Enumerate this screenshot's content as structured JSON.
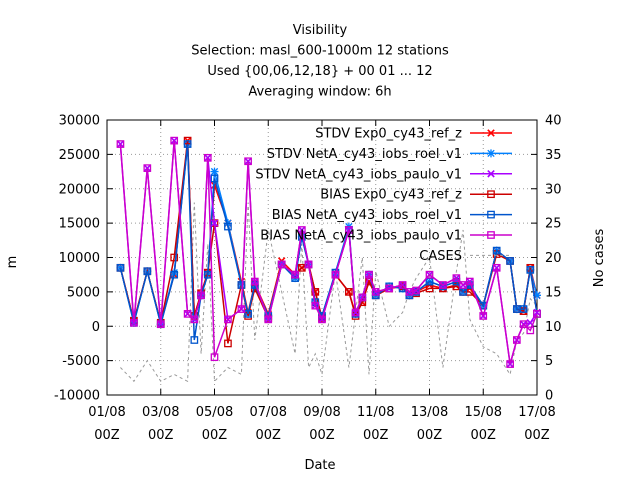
{
  "chart_data": {
    "type": "line",
    "title_lines": [
      "Visibility",
      "Selection: masl_600-1000m     12 stations",
      "Used {00,06,12,18} + 00 01 ... 12",
      "Averaging window:  6h"
    ],
    "xlabel": "Date",
    "ylabel": "m",
    "y2label": "No cases",
    "ylim": [
      -10000,
      30000
    ],
    "y2lim": [
      0,
      40
    ],
    "yticks": [
      "-10000",
      "-5000",
      "0",
      "5000",
      "10000",
      "15000",
      "20000",
      "25000",
      "30000"
    ],
    "y2ticks": [
      "0",
      "5",
      "10",
      "15",
      "20",
      "25",
      "30",
      "35",
      "40"
    ],
    "xlim": [
      "2016-08-01 00Z",
      "2016-08-17 00Z"
    ],
    "xticks": [
      {
        "date": "01/08",
        "hour": "00Z"
      },
      {
        "date": "03/08",
        "hour": "00Z"
      },
      {
        "date": "05/08",
        "hour": "00Z"
      },
      {
        "date": "07/08",
        "hour": "00Z"
      },
      {
        "date": "09/08",
        "hour": "00Z"
      },
      {
        "date": "11/08",
        "hour": "00Z"
      },
      {
        "date": "13/08",
        "hour": "00Z"
      },
      {
        "date": "15/08",
        "hour": "00Z"
      },
      {
        "date": "17/08",
        "hour": "00Z"
      }
    ],
    "grid": true,
    "legend_position": "top-right",
    "x_days": [
      0.5,
      1.0,
      1.5,
      2.0,
      2.5,
      3.0,
      3.25,
      3.5,
      3.75,
      4.0,
      4.5,
      5.0,
      5.25,
      5.5,
      6.0,
      6.5,
      7.0,
      7.25,
      7.5,
      7.75,
      8.0,
      8.5,
      9.0,
      9.25,
      9.5,
      9.75,
      10.0,
      10.5,
      11.0,
      11.25,
      11.5,
      12.0,
      12.5,
      13.0,
      13.25,
      13.5,
      14.0,
      14.5,
      15.0,
      15.25,
      15.5,
      15.75,
      16.0
    ],
    "series": [
      {
        "name": "STDV Exp0_cy43_ref_z",
        "axis": "y1",
        "color": "#ff0000",
        "marker": "x",
        "values": [
          8500,
          800,
          8000,
          500,
          7500,
          27000,
          1500,
          4800,
          7800,
          20500,
          15000,
          6500,
          2000,
          6200,
          1800,
          9500,
          7500,
          8500,
          9000,
          5000,
          1200,
          7500,
          5000,
          1800,
          3500,
          6500,
          4500,
          5500,
          5800,
          4500,
          5000,
          6000,
          5500,
          6000,
          5000,
          5500,
          3000,
          11000,
          9500,
          2500,
          2200,
          8500,
          4500
        ]
      },
      {
        "name": "STDV NetA_cy43_iobs_roel_v1",
        "axis": "y1",
        "color": "#0080ff",
        "marker": "asterisk",
        "values": [
          8500,
          500,
          8000,
          300,
          7800,
          26500,
          1500,
          4500,
          7500,
          22500,
          15000,
          6000,
          1800,
          6000,
          1500,
          9000,
          7000,
          13000,
          9000,
          3500,
          1500,
          7800,
          14500,
          1800,
          4200,
          7500,
          4500,
          5800,
          5500,
          4500,
          5000,
          6500,
          5800,
          6500,
          5000,
          6000,
          3000,
          11000,
          9500,
          2500,
          2500,
          8200,
          4500
        ]
      },
      {
        "name": "STDV NetA_cy43_iobs_paulo_v1",
        "axis": "y1",
        "color": "#aa00ff",
        "marker": "x",
        "values": [
          26500,
          500,
          23000,
          300,
          27000,
          1800,
          1000,
          4500,
          24500,
          15000,
          1000,
          2500,
          24000,
          6500,
          1000,
          9000,
          7500,
          14000,
          9000,
          3000,
          1000,
          7500,
          14000,
          2000,
          4200,
          7500,
          5000,
          5500,
          6000,
          5000,
          5200,
          7500,
          6000,
          7000,
          6000,
          6500,
          1500,
          8500,
          -5500,
          -2000,
          300,
          500,
          2000
        ]
      },
      {
        "name": "BIAS Exp0_cy43_ref_z",
        "axis": "y1",
        "color": "#cc0000",
        "marker": "square",
        "values": [
          8500,
          800,
          8000,
          500,
          10000,
          27000,
          1500,
          4800,
          7800,
          15000,
          -2500,
          6000,
          1500,
          5500,
          1200,
          9000,
          7500,
          8500,
          9000,
          5000,
          1200,
          7500,
          5000,
          1500,
          3500,
          6500,
          4500,
          5500,
          5800,
          4500,
          4800,
          5500,
          5500,
          5800,
          5000,
          5000,
          3000,
          10500,
          9500,
          2500,
          2200,
          8500,
          1800
        ]
      },
      {
        "name": "BIAS NetA_cy43_iobs_roel_v1",
        "axis": "y1",
        "color": "#0055cc",
        "marker": "square",
        "values": [
          8500,
          500,
          8000,
          300,
          7500,
          26500,
          -2000,
          4500,
          7500,
          21500,
          14500,
          6000,
          1800,
          6000,
          1500,
          9000,
          7000,
          13000,
          9000,
          3500,
          1500,
          7800,
          14000,
          1800,
          4200,
          7500,
          4500,
          5800,
          5500,
          4500,
          5000,
          6500,
          5800,
          6500,
          5000,
          6000,
          3000,
          11000,
          9500,
          2500,
          2500,
          8200,
          1800
        ]
      },
      {
        "name": "BIAS NetA_cy43_iobs_paulo_v1",
        "axis": "y1",
        "color": "#cc00cc",
        "marker": "square",
        "values": [
          26500,
          500,
          23000,
          300,
          27000,
          1800,
          1000,
          4500,
          24500,
          -4500,
          1000,
          2500,
          24000,
          6500,
          1000,
          9000,
          7500,
          14000,
          9000,
          3000,
          1000,
          7500,
          14000,
          2000,
          4200,
          7500,
          5000,
          5500,
          6000,
          5000,
          5200,
          7500,
          6000,
          7000,
          6000,
          6500,
          1500,
          8500,
          -5500,
          -2000,
          300,
          -600,
          1800
        ]
      },
      {
        "name": "CASES",
        "axis": "y2",
        "color": "#999999",
        "marker": "none",
        "dashed": true,
        "values": [
          4,
          2,
          5,
          2,
          3,
          2,
          28,
          6,
          22,
          2,
          4,
          3,
          28,
          8,
          24,
          15,
          6,
          22,
          4,
          6,
          3,
          18,
          4,
          12,
          20,
          3,
          18,
          10,
          12,
          15,
          17,
          20,
          4,
          18,
          24,
          11,
          7,
          6,
          3,
          8,
          9,
          14,
          13
        ]
      }
    ]
  }
}
